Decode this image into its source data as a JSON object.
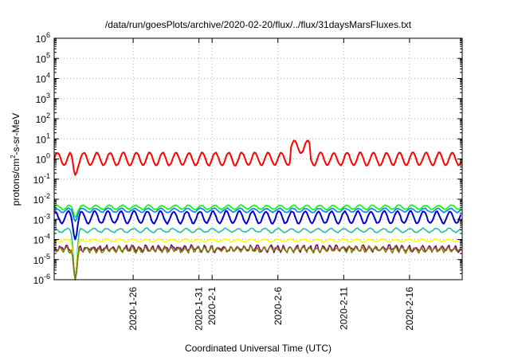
{
  "chart_data": {
    "type": "line",
    "title": "/data/run/goesPlots/archive/2020-02-20/flux/../flux/31daysMarsFluxes.txt",
    "xlabel": "Coordinated Universal Time (UTC)",
    "ylabel": {
      "prefix": "protons/cm",
      "sup": "2",
      "suffix": "-s-sr-MeV"
    },
    "y_scale": "log",
    "ylim_exp": [
      -6,
      6
    ],
    "y_ticks": [
      {
        "base": "10",
        "exp": "-6"
      },
      {
        "base": "10",
        "exp": "-5"
      },
      {
        "base": "10",
        "exp": "-4"
      },
      {
        "base": "10",
        "exp": "-3"
      },
      {
        "base": "10",
        "exp": "-2"
      },
      {
        "base": "10",
        "exp": "-1"
      },
      {
        "base": "10",
        "exp": "0"
      },
      {
        "base": "10",
        "exp": "1"
      },
      {
        "base": "10",
        "exp": "2"
      },
      {
        "base": "10",
        "exp": "3"
      },
      {
        "base": "10",
        "exp": "4"
      },
      {
        "base": "10",
        "exp": "5"
      },
      {
        "base": "10",
        "exp": "6"
      }
    ],
    "xlim": [
      "2020-01-20",
      "2020-02-20"
    ],
    "x_ticks": [
      "2020-1-26",
      "2020-1-31",
      "2020-2-1",
      "2020-2-6",
      "2020-2-11",
      "2020-2-16"
    ],
    "x_tick_dates": [
      "2020-01-26",
      "2020-01-31",
      "2020-02-01",
      "2020-02-06",
      "2020-02-11",
      "2020-02-16"
    ],
    "grid": true,
    "series": [
      {
        "color": "#ff0000",
        "baseline_log": 0.0,
        "amplitude": 0.32,
        "period_days": 1.0,
        "noise": 0.05,
        "dip_date": "2020-01-21.6",
        "dip_log": -0.8,
        "spike_date": "2020-02-07.5",
        "spike_log": 0.6
      },
      {
        "color": "#00ff00",
        "baseline_log": -2.4,
        "amplitude": 0.1,
        "period_days": 1.0,
        "noise": 0.05,
        "dip_date": "2020-01-21.6",
        "dip_log": -2.9
      },
      {
        "color": "#0080ff",
        "baseline_log": -2.55,
        "amplitude": 0.1,
        "period_days": 1.0,
        "noise": 0.05,
        "dip_date": "2020-01-21.6",
        "dip_log": -3.1
      },
      {
        "color": "#0000d0",
        "baseline_log": -2.9,
        "amplitude": 0.3,
        "period_days": 1.0,
        "noise": 0.06,
        "dip_date": "2020-01-21.6",
        "dip_log": -4.0
      },
      {
        "color": "#20c0a0",
        "baseline_log": -3.55,
        "amplitude": 0.1,
        "period_days": 1.0,
        "noise": 0.05,
        "dip_date": "2020-01-21.6",
        "dip_log": -6.0
      },
      {
        "color": "#ffff00",
        "baseline_log": -4.05,
        "amplitude": 0.07,
        "period_days": 1.0,
        "noise": 0.05,
        "dip_date": "2020-01-21.6",
        "dip_log": -6.0
      },
      {
        "color": "#800080",
        "baseline_log": -4.45,
        "amplitude": 0.12,
        "period_days": 0.5,
        "noise": 0.18,
        "dip_date": "2020-01-21.6",
        "dip_log": -6.0
      },
      {
        "color": "#808000",
        "baseline_log": -4.5,
        "amplitude": 0.12,
        "period_days": 0.5,
        "noise": 0.16,
        "dip_date": "2020-01-21.6",
        "dip_log": -6.0
      }
    ]
  }
}
